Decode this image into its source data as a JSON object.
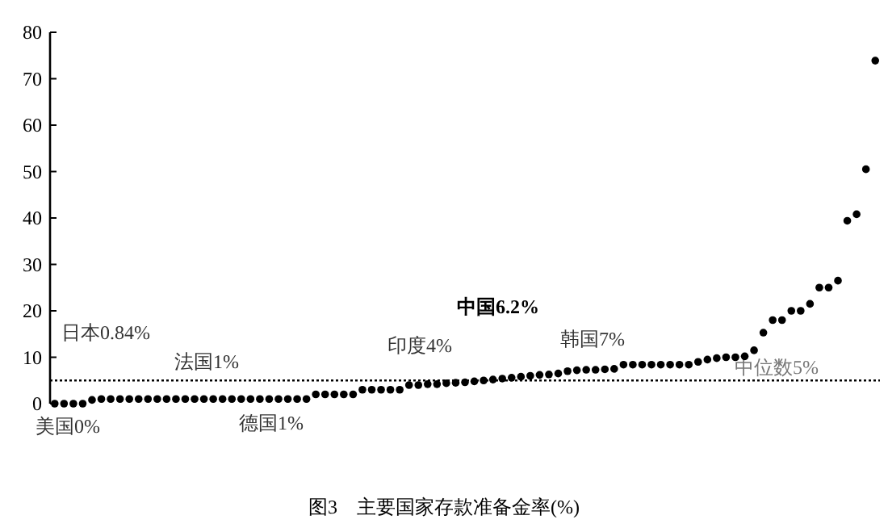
{
  "chart_data": {
    "type": "scatter",
    "title": "图3　主要国家存款准备金率(%)",
    "categories": [
      null,
      null,
      null,
      null,
      null,
      null,
      null,
      null,
      null,
      null,
      null,
      null,
      null,
      null,
      null,
      null,
      null,
      null,
      null,
      null,
      null,
      null,
      null,
      null,
      null,
      null,
      null,
      null,
      null,
      null,
      null,
      null,
      null,
      null,
      null,
      null,
      null,
      null,
      null,
      null,
      null,
      null,
      null,
      null,
      null,
      null,
      null,
      null,
      null,
      null,
      null,
      null,
      null,
      null,
      null,
      null,
      null,
      null,
      null,
      null,
      null,
      null,
      null,
      null,
      null,
      null,
      null,
      null,
      null,
      null,
      null,
      null,
      null,
      null,
      null,
      null,
      null,
      null,
      null,
      null,
      null,
      null,
      null,
      null,
      null,
      null,
      null,
      null,
      null
    ],
    "series": [
      {
        "color": "#000000",
        "values": [
          0,
          0,
          0,
          0,
          0.8,
          1,
          1,
          1,
          1,
          1,
          1,
          1,
          1,
          1,
          1,
          1,
          1,
          1,
          1,
          1,
          1,
          1,
          1,
          1,
          1,
          1,
          1,
          1,
          2,
          2,
          2,
          2,
          2,
          3,
          3,
          3,
          3,
          3,
          4,
          4,
          4.2,
          4.2,
          4.4,
          4.5,
          4.6,
          4.8,
          5,
          5.2,
          5.4,
          5.6,
          5.8,
          6,
          6.2,
          6.3,
          6.5,
          7,
          7.2,
          7.3,
          7.3,
          7.4,
          7.5,
          8.4,
          8.4,
          8.4,
          8.4,
          8.4,
          8.4,
          8.4,
          8.4,
          9,
          9.5,
          9.8,
          10,
          10,
          10.2,
          11.5,
          15.3,
          18,
          18,
          20,
          20,
          21.5,
          25,
          25,
          26.5,
          39.4,
          40.8,
          50.5,
          73.9
        ]
      }
    ],
    "ylim": [
      0,
      80
    ],
    "yticks": [
      0,
      10,
      20,
      30,
      40,
      50,
      60,
      70,
      80
    ],
    "marker": "circle",
    "grid": false,
    "tick_labels": "y",
    "ref_lines": [
      {
        "axis": "y",
        "value": 5,
        "label": "中位数5%",
        "line_style": "dotted",
        "color": "#000000"
      }
    ],
    "annotations": [
      "美国0%",
      "日本0.84%",
      "法国1%",
      "德国1%",
      "印度4%",
      "中国6.2%",
      "韩国7%"
    ]
  }
}
